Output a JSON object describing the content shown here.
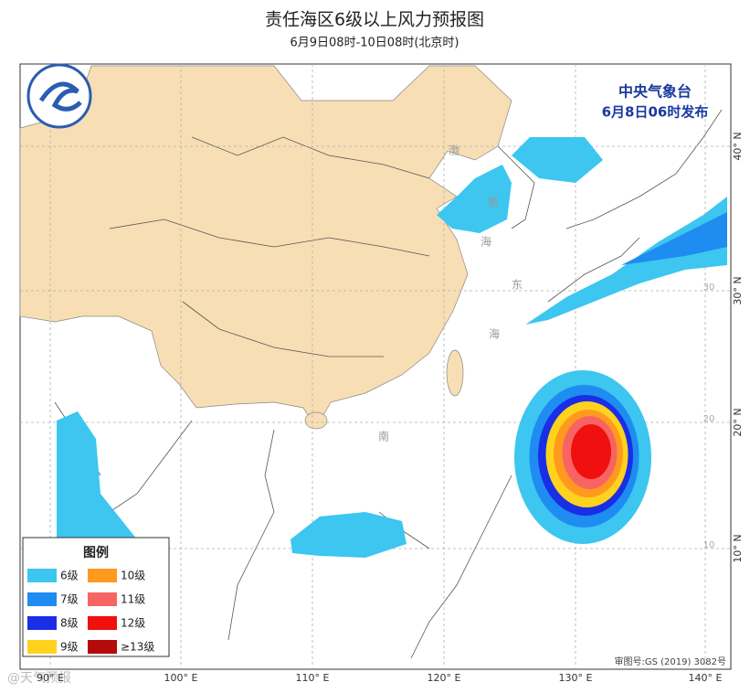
{
  "header": {
    "title": "责任海区6级以上风力预报图",
    "subtitle": "6月9日08时-10日08时(北京时)"
  },
  "agency": {
    "name": "中央气象台",
    "issued": "6月8日06时发布"
  },
  "legend": {
    "title": "图例",
    "items": [
      {
        "label": "6级",
        "color": "#3cc6f0"
      },
      {
        "label": "10级",
        "color": "#ff9a1e"
      },
      {
        "label": "7级",
        "color": "#1e8cf0"
      },
      {
        "label": "11级",
        "color": "#f86464"
      },
      {
        "label": "8级",
        "color": "#1a2ee6"
      },
      {
        "label": "12级",
        "color": "#f01010"
      },
      {
        "label": "9级",
        "color": "#ffd21e"
      },
      {
        "label": "≥13级",
        "color": "#b40a0a"
      }
    ]
  },
  "axes": {
    "lon_labels": [
      "90° E",
      "100° E",
      "110° E",
      "120° E",
      "130° E",
      "140° E"
    ],
    "lat_labels": [
      "40° N",
      "30° N",
      "20° N",
      "10° N"
    ],
    "grid_labels": [
      "30",
      "20",
      "10"
    ]
  },
  "sea_labels": [
    "渤",
    "黄",
    "海",
    "东",
    "海",
    "南"
  ],
  "footer": {
    "approval": "审图号:GS (2019) 3082号",
    "watermark": "@天气预报"
  }
}
